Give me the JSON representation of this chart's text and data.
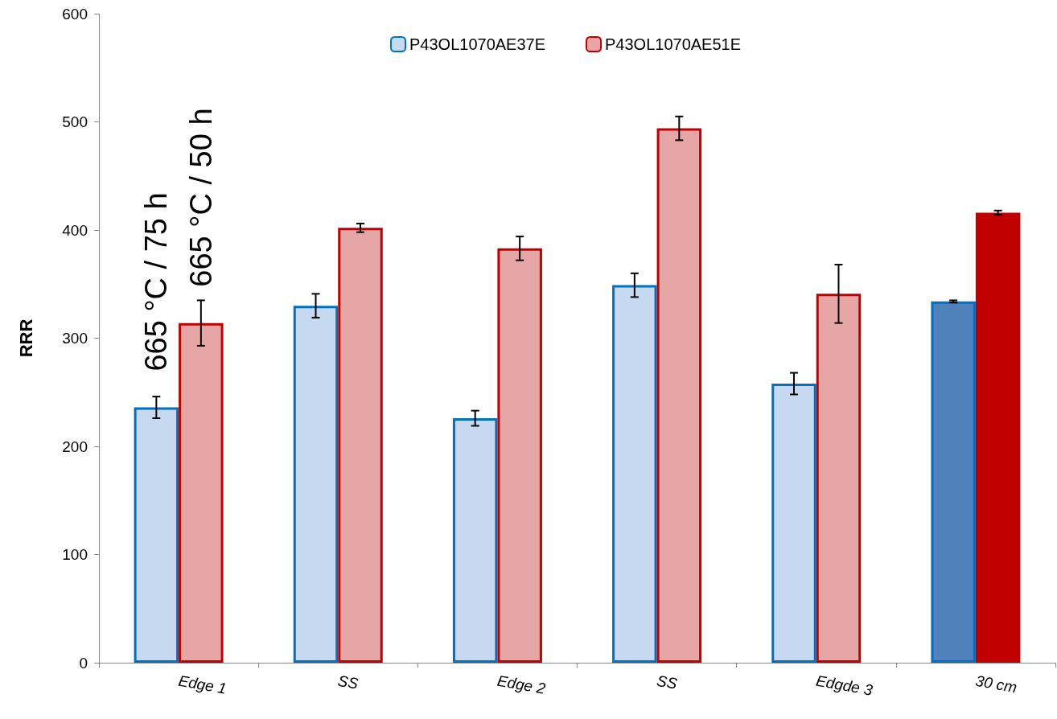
{
  "chart_data": {
    "type": "bar",
    "ylabel": "RRR",
    "categories": [
      "Edge 1",
      "SS",
      "Edge 2",
      "SS",
      "Edgde 3",
      "30 cm"
    ],
    "series": [
      {
        "name": "P43OL1070AE37E",
        "color": "#0070c0",
        "colors": [
          "#c6d9f1",
          "#c6d9f1",
          "#c6d9f1",
          "#c6d9f1",
          "#c6d9f1",
          "#4f81bd"
        ],
        "values": [
          236,
          330,
          226,
          349,
          258,
          334
        ],
        "errors": [
          10,
          11,
          7,
          11,
          10,
          1
        ]
      },
      {
        "name": "P43OL1070AE51E",
        "color": "#c00000",
        "colors": [
          "#e6a6a6",
          "#e6a6a6",
          "#e6a6a6",
          "#e6a6a6",
          "#e6a6a6",
          "#c00000"
        ],
        "values": [
          314,
          402,
          383,
          494,
          341,
          416
        ],
        "errors": [
          21,
          4,
          11,
          11,
          27,
          2
        ]
      }
    ],
    "ylim": [
      0,
      600
    ],
    "yticks": [
      0,
      100,
      200,
      300,
      400,
      500,
      600
    ],
    "grid": false,
    "legend": "top",
    "annotations": [
      "665 °C / 75 h",
      "665 °C / 50 h"
    ]
  }
}
